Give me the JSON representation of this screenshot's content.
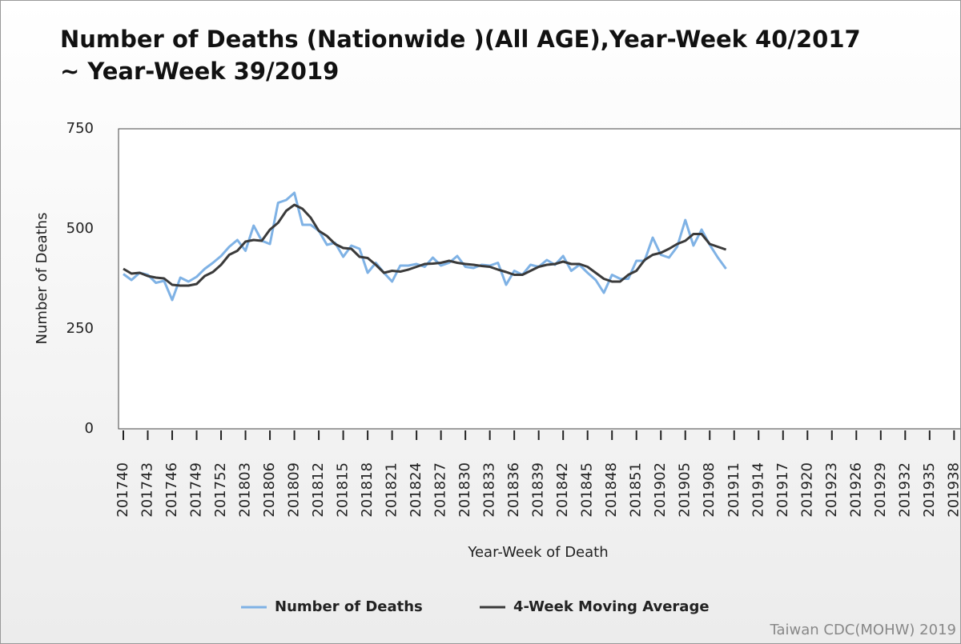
{
  "chart_data": {
    "type": "line",
    "title": "Number of Deaths (Nationwide )(All AGE),Year-Week 40/2017 ~ Year-Week 39/2019",
    "x_label": "Year-Week of Death",
    "y_label": "Number of Deaths",
    "credit": "Taiwan CDC(MOHW) 2019",
    "categories": [
      "201740",
      null,
      null,
      "201743",
      null,
      null,
      "201746",
      null,
      null,
      "201749",
      null,
      null,
      "201752",
      null,
      null,
      "201803",
      null,
      null,
      "201806",
      null,
      null,
      "201809",
      null,
      null,
      "201812",
      null,
      null,
      "201815",
      null,
      null,
      "201818",
      null,
      null,
      "201821",
      null,
      null,
      "201824",
      null,
      null,
      "201827",
      null,
      null,
      "201830",
      null,
      null,
      "201833",
      null,
      null,
      "201836",
      null,
      null,
      "201839",
      null,
      null,
      "201842",
      null,
      null,
      "201845",
      null,
      null,
      "201848",
      null,
      null,
      "201851",
      null,
      null,
      "201902",
      null,
      null,
      "201905",
      null,
      null,
      "201908",
      null,
      null,
      "201911",
      null,
      null,
      "201914",
      null,
      null,
      "201917",
      null,
      null,
      "201920",
      null,
      null,
      "201923",
      null,
      null,
      "201926",
      null,
      null,
      "201929",
      null,
      null,
      "201932",
      null,
      null,
      "201935",
      null,
      null,
      "201938",
      null
    ],
    "series": [
      {
        "name": "Number of Deaths",
        "color": "#7fb2e5",
        "values": [
          387,
          372,
          390,
          385,
          365,
          370,
          322,
          378,
          368,
          380,
          400,
          415,
          432,
          455,
          472,
          445,
          508,
          470,
          462,
          565,
          572,
          590,
          510,
          510,
          495,
          460,
          465,
          430,
          458,
          450,
          390,
          415,
          390,
          368,
          408,
          408,
          412,
          405,
          428,
          408,
          415,
          432,
          405,
          402,
          410,
          408,
          415,
          360,
          395,
          385,
          410,
          405,
          422,
          410,
          432,
          395,
          410,
          390,
          372,
          340,
          385,
          375,
          375,
          420,
          420,
          478,
          435,
          428,
          455,
          522,
          458,
          498,
          460,
          428,
          400,
          null,
          null,
          null,
          null,
          null,
          null,
          null,
          null,
          null,
          null,
          null,
          null,
          null,
          null,
          null,
          null,
          null,
          null,
          null,
          null,
          null,
          null,
          null,
          null,
          null,
          null,
          null,
          null,
          null
        ]
      },
      {
        "name": "4-Week Moving Average",
        "color": "#3a3a3a",
        "values": [
          400,
          388,
          390,
          382,
          378,
          376,
          360,
          358,
          358,
          362,
          382,
          392,
          410,
          435,
          445,
          468,
          472,
          470,
          498,
          515,
          545,
          560,
          550,
          528,
          495,
          482,
          462,
          452,
          450,
          430,
          427,
          410,
          390,
          395,
          393,
          398,
          405,
          412,
          413,
          415,
          420,
          415,
          412,
          410,
          407,
          405,
          398,
          392,
          385,
          385,
          395,
          405,
          410,
          412,
          418,
          412,
          412,
          405,
          390,
          375,
          368,
          368,
          385,
          395,
          422,
          435,
          440,
          450,
          462,
          470,
          487,
          487,
          462,
          455,
          448,
          null,
          null,
          null,
          null,
          null,
          null,
          null,
          null,
          null,
          null,
          null,
          null,
          null,
          null,
          null,
          null,
          null,
          null,
          null,
          null,
          null,
          null,
          null,
          null,
          null,
          null,
          null,
          null,
          null
        ]
      }
    ],
    "ylim": [
      0,
      750
    ],
    "yticks": [
      0,
      250,
      500,
      750
    ],
    "grid": false
  }
}
